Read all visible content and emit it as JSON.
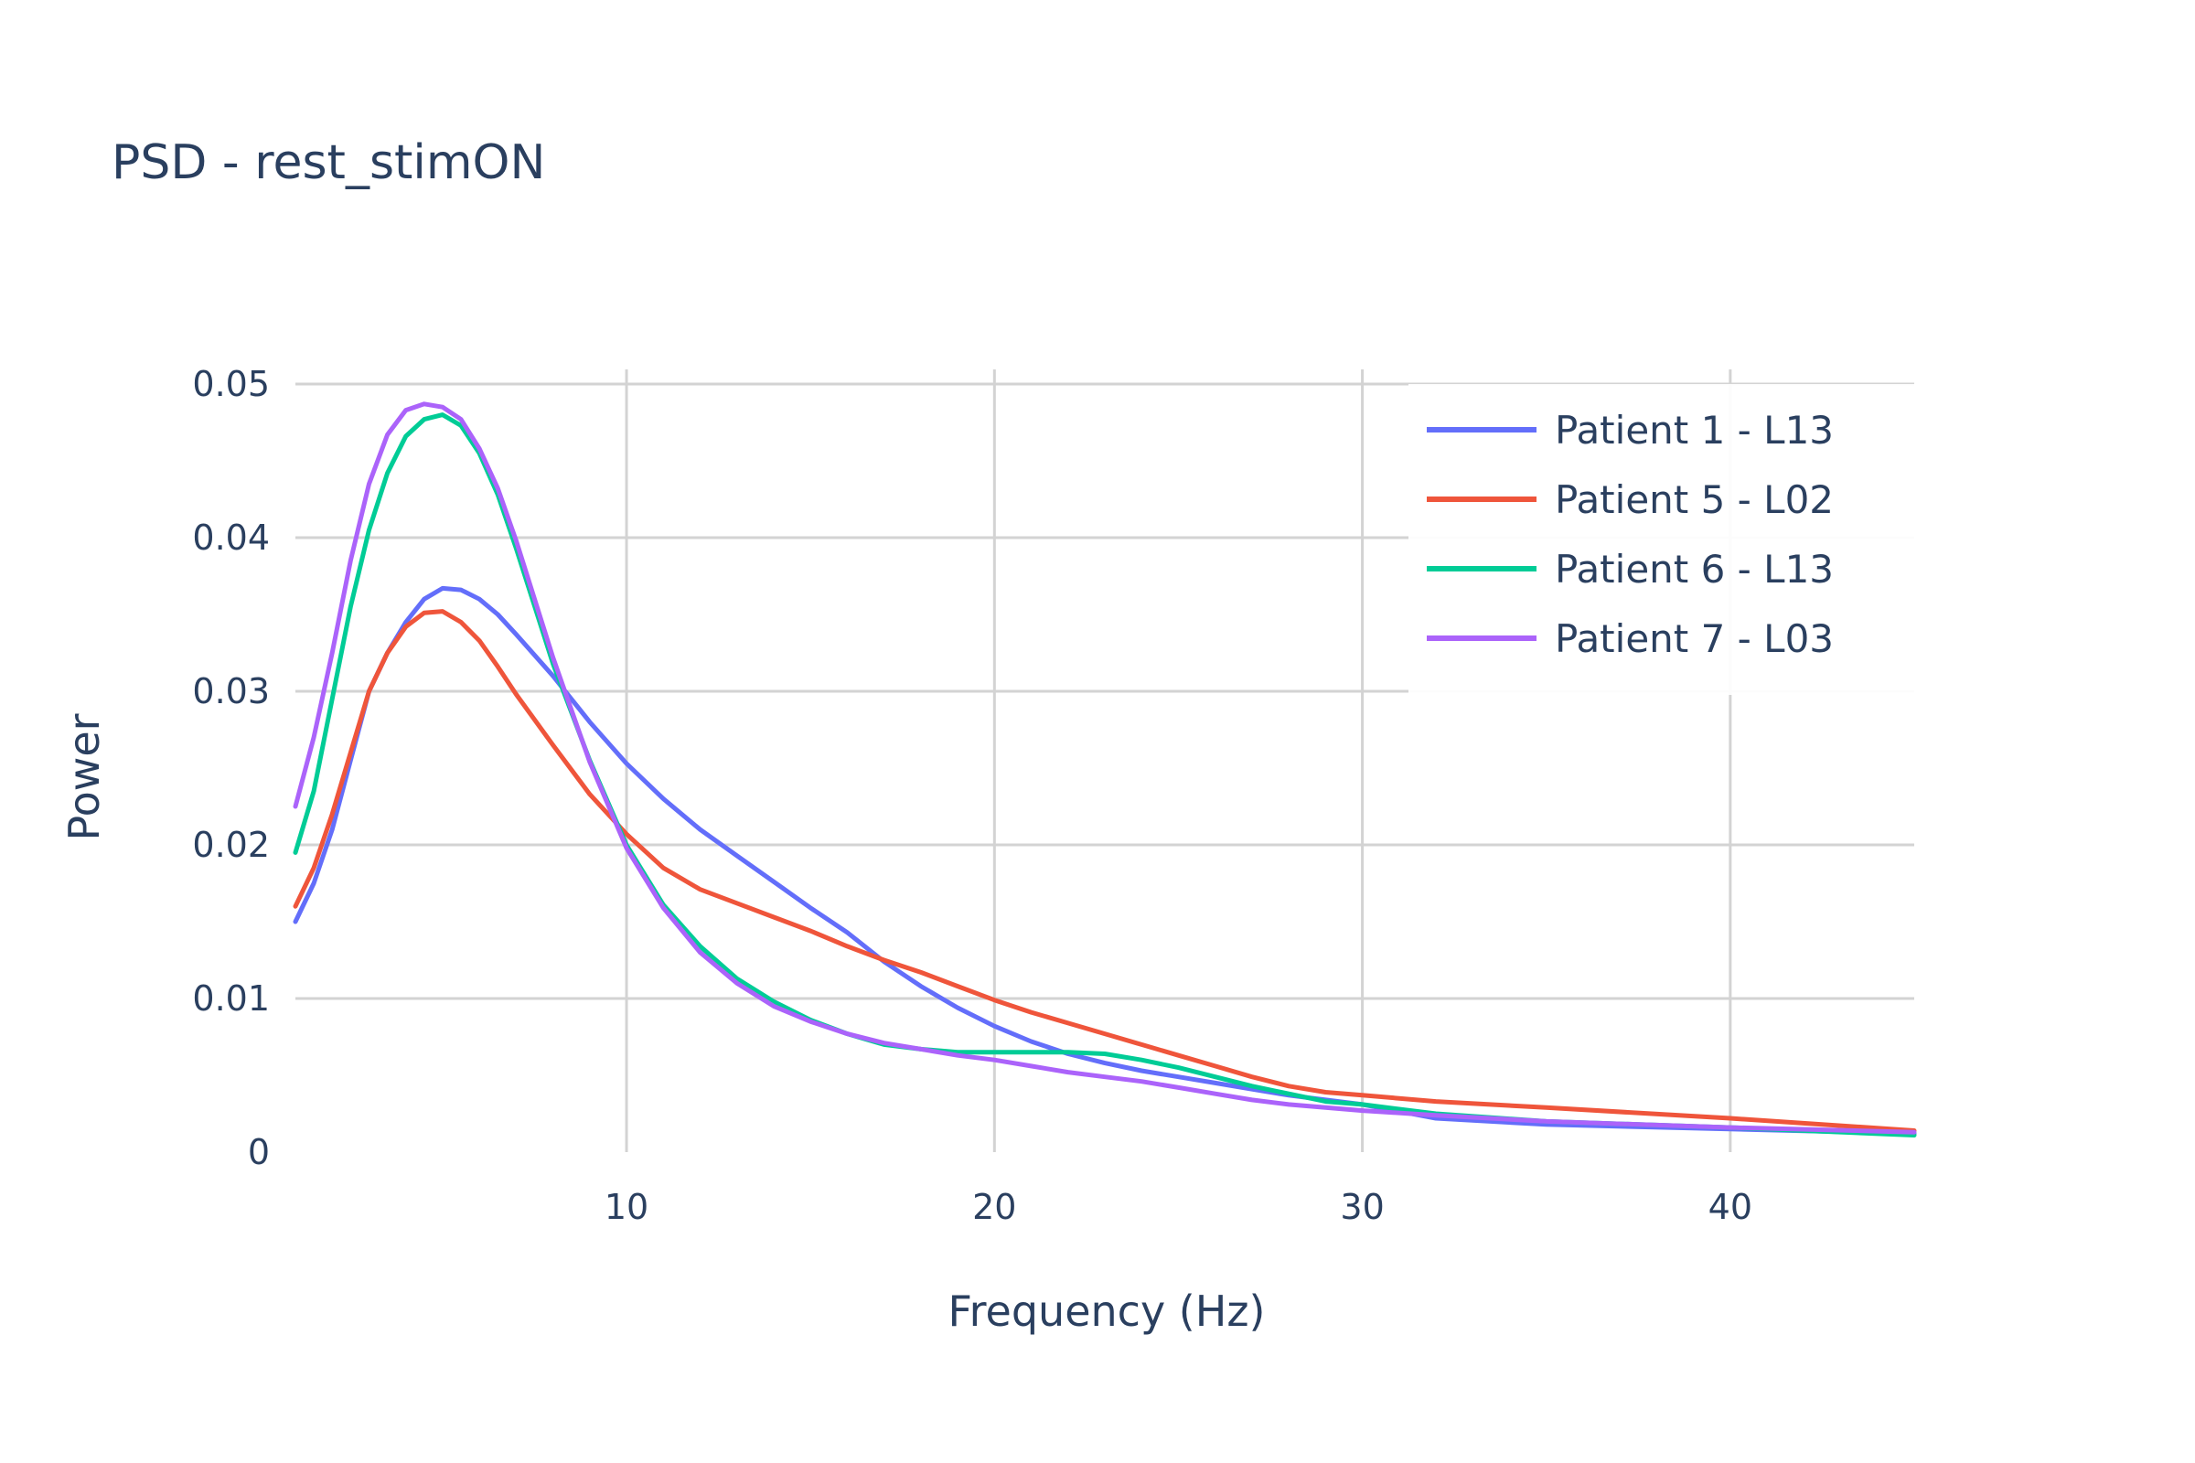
{
  "chart_data": {
    "type": "line",
    "title": "PSD - rest_stimON",
    "xlabel": "Frequency (Hz)",
    "ylabel": "Power",
    "xlim": [
      1,
      45
    ],
    "ylim": [
      0,
      0.05
    ],
    "x_ticks": [
      10,
      20,
      30,
      40
    ],
    "x_tick_labels": [
      "10",
      "20",
      "30",
      "40"
    ],
    "y_ticks": [
      0,
      0.01,
      0.02,
      0.03,
      0.04,
      0.05
    ],
    "y_tick_labels": [
      "0",
      "0.01",
      "0.02",
      "0.03",
      "0.04",
      "0.05"
    ],
    "grid": true,
    "legend_position": "top-right",
    "series": [
      {
        "name": "Patient 1 - L13",
        "color": "#636efa",
        "x": [
          1,
          1.5,
          2,
          2.5,
          3,
          3.5,
          4,
          4.5,
          5,
          5.5,
          6,
          6.5,
          7,
          8,
          9,
          10,
          11,
          12,
          13,
          14,
          15,
          16,
          17,
          18,
          19,
          20,
          21,
          22,
          23,
          24,
          25,
          26,
          27,
          28,
          29,
          30,
          32,
          35,
          40,
          45
        ],
        "y": [
          0.015,
          0.0175,
          0.021,
          0.0255,
          0.03,
          0.0325,
          0.0345,
          0.036,
          0.0367,
          0.0366,
          0.036,
          0.035,
          0.0337,
          0.031,
          0.028,
          0.0253,
          0.023,
          0.021,
          0.0193,
          0.0176,
          0.0159,
          0.0143,
          0.0124,
          0.0108,
          0.0094,
          0.0082,
          0.0072,
          0.0064,
          0.0058,
          0.0053,
          0.0049,
          0.0045,
          0.0041,
          0.0037,
          0.0034,
          0.0031,
          0.0022,
          0.0018,
          0.0015,
          0.0012
        ]
      },
      {
        "name": "Patient 5 - L02",
        "color": "#ef553b",
        "x": [
          1,
          1.5,
          2,
          2.5,
          3,
          3.5,
          4,
          4.5,
          5,
          5.5,
          6,
          6.5,
          7,
          8,
          9,
          10,
          11,
          12,
          13,
          14,
          15,
          16,
          17,
          18,
          19,
          20,
          21,
          22,
          23,
          24,
          25,
          26,
          27,
          28,
          29,
          30,
          32,
          35,
          40,
          45
        ],
        "y": [
          0.016,
          0.0185,
          0.022,
          0.026,
          0.03,
          0.0325,
          0.0342,
          0.0351,
          0.0352,
          0.0345,
          0.0333,
          0.0316,
          0.0298,
          0.0265,
          0.0233,
          0.0207,
          0.0185,
          0.0171,
          0.0162,
          0.0153,
          0.0144,
          0.0134,
          0.0125,
          0.0117,
          0.0108,
          0.0099,
          0.0091,
          0.0084,
          0.0077,
          0.007,
          0.0063,
          0.0056,
          0.0049,
          0.0043,
          0.0039,
          0.0037,
          0.0033,
          0.0029,
          0.0022,
          0.0014
        ]
      },
      {
        "name": "Patient 6 - L13",
        "color": "#00cc96",
        "x": [
          1,
          1.5,
          2,
          2.5,
          3,
          3.5,
          4,
          4.5,
          5,
          5.5,
          6,
          6.5,
          7,
          8,
          9,
          10,
          11,
          12,
          13,
          14,
          15,
          16,
          17,
          18,
          19,
          20,
          21,
          22,
          23,
          24,
          25,
          26,
          27,
          28,
          29,
          30,
          32,
          35,
          40,
          45
        ],
        "y": [
          0.0195,
          0.0235,
          0.0295,
          0.0355,
          0.0405,
          0.0442,
          0.0466,
          0.0477,
          0.048,
          0.0473,
          0.0455,
          0.0428,
          0.0393,
          0.0318,
          0.0255,
          0.02,
          0.0161,
          0.0134,
          0.0113,
          0.0098,
          0.0086,
          0.0077,
          0.007,
          0.0067,
          0.0065,
          0.0065,
          0.0065,
          0.0065,
          0.0064,
          0.006,
          0.0055,
          0.0049,
          0.0043,
          0.0038,
          0.0033,
          0.0031,
          0.0025,
          0.002,
          0.0016,
          0.0011
        ]
      },
      {
        "name": "Patient 7 - L03",
        "color": "#ab63fa",
        "x": [
          1,
          1.5,
          2,
          2.5,
          3,
          3.5,
          4,
          4.5,
          5,
          5.5,
          6,
          6.5,
          7,
          8,
          9,
          10,
          11,
          12,
          13,
          14,
          15,
          16,
          17,
          18,
          19,
          20,
          21,
          22,
          23,
          24,
          25,
          26,
          27,
          28,
          29,
          30,
          32,
          35,
          40,
          45
        ],
        "y": [
          0.0225,
          0.027,
          0.0325,
          0.0385,
          0.0435,
          0.0467,
          0.0483,
          0.0487,
          0.0485,
          0.0477,
          0.0458,
          0.0432,
          0.0398,
          0.0322,
          0.0254,
          0.0198,
          0.0159,
          0.013,
          0.011,
          0.0095,
          0.0085,
          0.0077,
          0.0071,
          0.0067,
          0.0063,
          0.006,
          0.0056,
          0.0052,
          0.0049,
          0.0046,
          0.0042,
          0.0038,
          0.0034,
          0.0031,
          0.0029,
          0.0027,
          0.0024,
          0.002,
          0.0016,
          0.0013
        ]
      }
    ]
  }
}
